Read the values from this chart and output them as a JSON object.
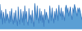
{
  "values": [
    72,
    30,
    55,
    15,
    50,
    35,
    18,
    58,
    25,
    45,
    32,
    18,
    52,
    22,
    60,
    30,
    15,
    48,
    20,
    55,
    28,
    10,
    65,
    32,
    15,
    58,
    40,
    20,
    52,
    12,
    68,
    30,
    52,
    22,
    12,
    60,
    28,
    42,
    18,
    55,
    25,
    8,
    75,
    50,
    28,
    68,
    38,
    18,
    60,
    25,
    52,
    20,
    42,
    8,
    58,
    28,
    50,
    40,
    28,
    18,
    68,
    48,
    25,
    62,
    38,
    18,
    52,
    28,
    60,
    48,
    25,
    70,
    48,
    38,
    62,
    28,
    52,
    38,
    25,
    62,
    70,
    48,
    62,
    38,
    52,
    65,
    40,
    28,
    62,
    48,
    72,
    62,
    50,
    38,
    62,
    50,
    62,
    50,
    38,
    28
  ],
  "line_color": "#3a7abf",
  "fill_color": "#5b9fd4",
  "background_color": "#ffffff",
  "ylim_min": -5,
  "ylim_max": 85
}
